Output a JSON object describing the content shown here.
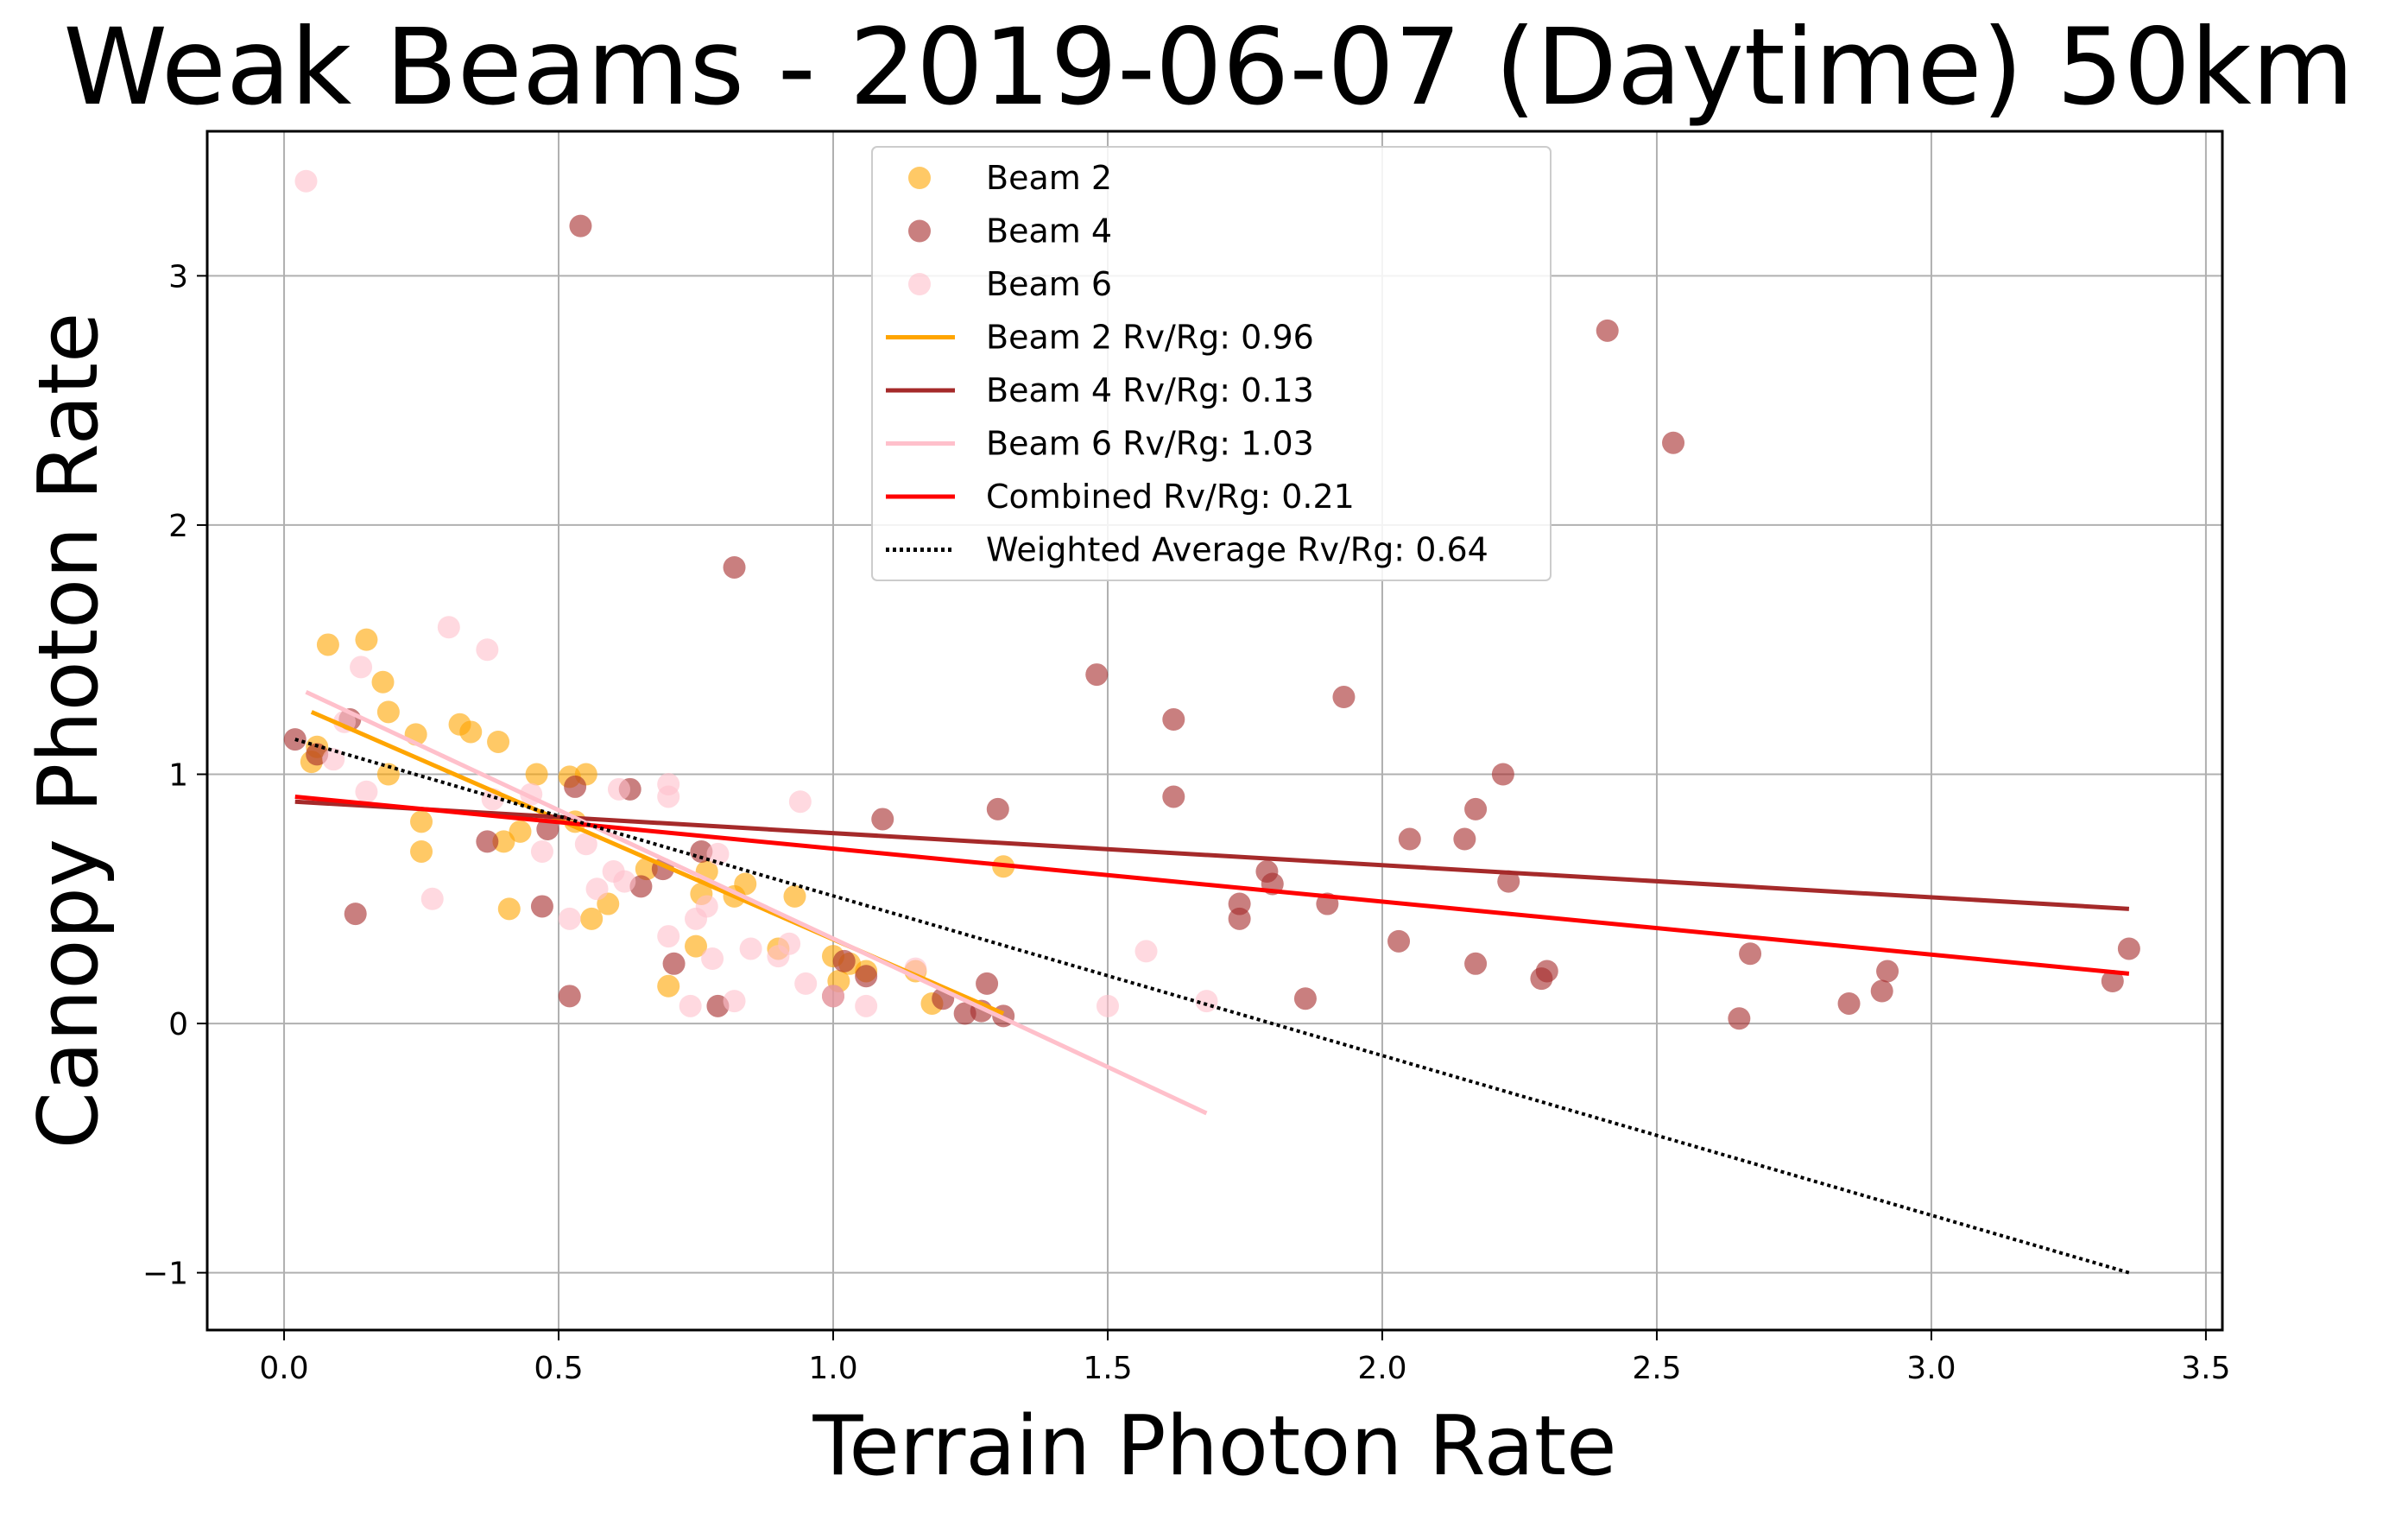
{
  "chart_data": {
    "type": "scatter",
    "title": "Weak Beams - 2019-06-07 (Daytime) 50km",
    "xlabel": "Terrain Photon Rate",
    "ylabel": "Canopy Photon Rate",
    "xlim": [
      -0.14,
      3.53
    ],
    "ylim": [
      -1.23,
      3.58
    ],
    "xticks": [
      0.0,
      0.5,
      1.0,
      1.5,
      2.0,
      2.5,
      3.0,
      3.5
    ],
    "xtick_labels": [
      "0.0",
      "0.5",
      "1.0",
      "1.5",
      "2.0",
      "2.5",
      "3.0",
      "3.5"
    ],
    "yticks": [
      -1,
      0,
      1,
      2,
      3
    ],
    "ytick_labels": [
      "−1",
      "0",
      "1",
      "2",
      "3"
    ],
    "grid": true,
    "legend_position": "top-center",
    "scatter_series": [
      {
        "name": "Beam 2",
        "color": "#FFA500",
        "points": [
          [
            0.05,
            1.05
          ],
          [
            0.06,
            1.11
          ],
          [
            0.08,
            1.52
          ],
          [
            0.15,
            1.54
          ],
          [
            0.18,
            1.37
          ],
          [
            0.19,
            1.25
          ],
          [
            0.19,
            1.0
          ],
          [
            0.24,
            1.16
          ],
          [
            0.25,
            0.81
          ],
          [
            0.25,
            0.69
          ],
          [
            0.32,
            1.2
          ],
          [
            0.34,
            1.17
          ],
          [
            0.39,
            1.13
          ],
          [
            0.4,
            0.73
          ],
          [
            0.41,
            0.46
          ],
          [
            0.43,
            0.77
          ],
          [
            0.46,
            1.0
          ],
          [
            0.52,
            0.99
          ],
          [
            0.53,
            0.81
          ],
          [
            0.55,
            1.0
          ],
          [
            0.56,
            0.42
          ],
          [
            0.59,
            0.48
          ],
          [
            0.66,
            0.62
          ],
          [
            0.7,
            0.15
          ],
          [
            0.75,
            0.31
          ],
          [
            0.76,
            0.52
          ],
          [
            0.77,
            0.61
          ],
          [
            0.82,
            0.51
          ],
          [
            0.84,
            0.56
          ],
          [
            0.9,
            0.3
          ],
          [
            0.93,
            0.51
          ],
          [
            1.0,
            0.27
          ],
          [
            1.01,
            0.17
          ],
          [
            1.03,
            0.24
          ],
          [
            1.06,
            0.21
          ],
          [
            1.15,
            0.21
          ],
          [
            1.18,
            0.08
          ],
          [
            1.31,
            0.63
          ]
        ]
      },
      {
        "name": "Beam 4",
        "color": "#A52A2A",
        "points": [
          [
            0.02,
            1.14
          ],
          [
            0.06,
            1.08
          ],
          [
            0.12,
            1.22
          ],
          [
            0.13,
            0.44
          ],
          [
            0.37,
            0.73
          ],
          [
            0.47,
            0.47
          ],
          [
            0.48,
            0.78
          ],
          [
            0.52,
            0.11
          ],
          [
            0.53,
            0.95
          ],
          [
            0.54,
            3.2
          ],
          [
            0.63,
            0.94
          ],
          [
            0.65,
            0.55
          ],
          [
            0.69,
            0.62
          ],
          [
            0.71,
            0.24
          ],
          [
            0.76,
            0.69
          ],
          [
            0.79,
            0.07
          ],
          [
            0.82,
            1.83
          ],
          [
            1.0,
            0.11
          ],
          [
            1.02,
            0.25
          ],
          [
            1.06,
            0.19
          ],
          [
            1.09,
            0.82
          ],
          [
            1.2,
            0.1
          ],
          [
            1.24,
            0.04
          ],
          [
            1.27,
            0.05
          ],
          [
            1.28,
            0.16
          ],
          [
            1.3,
            0.86
          ],
          [
            1.31,
            0.03
          ],
          [
            1.48,
            1.4
          ],
          [
            1.62,
            1.22
          ],
          [
            1.62,
            0.91
          ],
          [
            1.74,
            0.48
          ],
          [
            1.74,
            0.42
          ],
          [
            1.79,
            0.61
          ],
          [
            1.8,
            0.56
          ],
          [
            1.86,
            0.1
          ],
          [
            1.9,
            0.48
          ],
          [
            1.93,
            1.31
          ],
          [
            2.03,
            0.33
          ],
          [
            2.05,
            0.74
          ],
          [
            2.15,
            0.74
          ],
          [
            2.17,
            0.86
          ],
          [
            2.17,
            0.24
          ],
          [
            2.22,
            1.0
          ],
          [
            2.23,
            0.57
          ],
          [
            2.29,
            0.18
          ],
          [
            2.3,
            0.21
          ],
          [
            2.41,
            2.78
          ],
          [
            2.53,
            2.33
          ],
          [
            2.65,
            0.02
          ],
          [
            2.67,
            0.28
          ],
          [
            2.85,
            0.08
          ],
          [
            2.91,
            0.13
          ],
          [
            2.92,
            0.21
          ],
          [
            3.33,
            0.17
          ],
          [
            3.36,
            0.3
          ]
        ]
      },
      {
        "name": "Beam 6",
        "color": "#FFC0CB",
        "points": [
          [
            0.04,
            3.38
          ],
          [
            0.09,
            1.06
          ],
          [
            0.11,
            1.21
          ],
          [
            0.14,
            1.43
          ],
          [
            0.15,
            0.93
          ],
          [
            0.27,
            0.5
          ],
          [
            0.3,
            1.59
          ],
          [
            0.37,
            1.5
          ],
          [
            0.38,
            0.9
          ],
          [
            0.45,
            0.92
          ],
          [
            0.47,
            0.69
          ],
          [
            0.52,
            0.42
          ],
          [
            0.55,
            0.72
          ],
          [
            0.57,
            0.54
          ],
          [
            0.6,
            0.61
          ],
          [
            0.61,
            0.94
          ],
          [
            0.62,
            0.57
          ],
          [
            0.7,
            0.91
          ],
          [
            0.7,
            0.96
          ],
          [
            0.7,
            0.35
          ],
          [
            0.75,
            0.42
          ],
          [
            0.77,
            0.47
          ],
          [
            0.78,
            0.26
          ],
          [
            0.79,
            0.68
          ],
          [
            0.82,
            0.09
          ],
          [
            0.85,
            0.3
          ],
          [
            0.9,
            0.27
          ],
          [
            0.92,
            0.32
          ],
          [
            0.94,
            0.89
          ],
          [
            0.95,
            0.16
          ],
          [
            1.0,
            0.11
          ],
          [
            1.06,
            0.07
          ],
          [
            1.15,
            0.22
          ],
          [
            1.5,
            0.07
          ],
          [
            1.57,
            0.29
          ],
          [
            1.68,
            0.09
          ],
          [
            0.74,
            0.07
          ]
        ]
      }
    ],
    "line_series": [
      {
        "name": "Beam 2 Rv/Rg: 0.96",
        "color": "#FFA500",
        "style": "solid",
        "x": [
          0.05,
          1.31
        ],
        "y": [
          1.25,
          0.04
        ]
      },
      {
        "name": "Beam 4 Rv/Rg: 0.13",
        "color": "#A52A2A",
        "style": "solid",
        "x": [
          0.02,
          3.36
        ],
        "y": [
          0.89,
          0.46
        ]
      },
      {
        "name": "Beam 6 Rv/Rg: 1.03",
        "color": "#FFC0CB",
        "style": "solid",
        "x": [
          0.04,
          1.68
        ],
        "y": [
          1.33,
          -0.36
        ]
      },
      {
        "name": "Combined Rv/Rg: 0.21",
        "color": "#FF0000",
        "style": "solid",
        "x": [
          0.02,
          3.36
        ],
        "y": [
          0.91,
          0.2
        ]
      },
      {
        "name": "Weighted Average Rv/Rg: 0.64",
        "color": "#000000",
        "style": "dotted",
        "x": [
          0.02,
          3.36
        ],
        "y": [
          1.14,
          -1.0
        ]
      }
    ]
  }
}
